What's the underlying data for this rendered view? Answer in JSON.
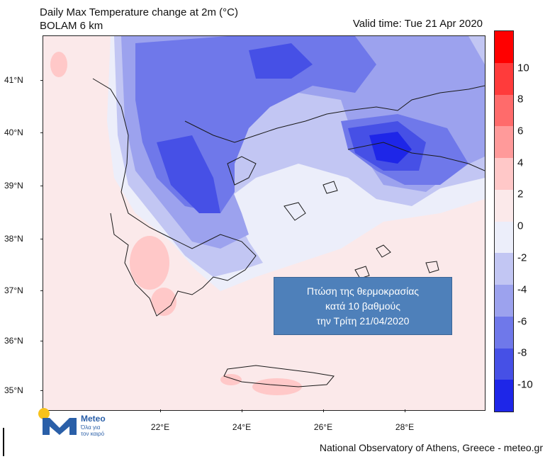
{
  "header": {
    "title_line1": "Daily Max Temperature change at 2m (°C)",
    "title_line2": "BOLAM 6 km",
    "valid_time": "Valid time: Tue 21 Apr 2020"
  },
  "map": {
    "lat_labels": [
      "41°N",
      "40°N",
      "39°N",
      "38°N",
      "37°N",
      "36°N",
      "35°N"
    ],
    "lon_labels": [
      "22°E",
      "24°E",
      "26°E",
      "28°E"
    ],
    "colors": {
      "background": "#fbe9ea",
      "land_outline": "#1a1a1a"
    }
  },
  "colorbar": {
    "labels": [
      "10",
      "8",
      "6",
      "4",
      "2",
      "0",
      "-2",
      "-4",
      "-6",
      "-8",
      "-10"
    ],
    "colors": [
      "#ff0000",
      "#ff3b3b",
      "#ff6b6b",
      "#ff9a9a",
      "#ffc8c8",
      "#fbe9ea",
      "#eceefa",
      "#c2c6f3",
      "#9ca2ee",
      "#6f78ea",
      "#4650e6",
      "#1e26e8"
    ]
  },
  "info_box": {
    "line1": "Πτώση της θερμοκρασίας",
    "line2": "κατά 10 βαθμούς",
    "line3": "την Τρίτη  21/04/2020"
  },
  "logo": {
    "name": "Meteo",
    "tagline": "Όλα για τον καιρό"
  },
  "footer": {
    "credit": "National Observatory of Athens, Greece - meteo.gr"
  }
}
